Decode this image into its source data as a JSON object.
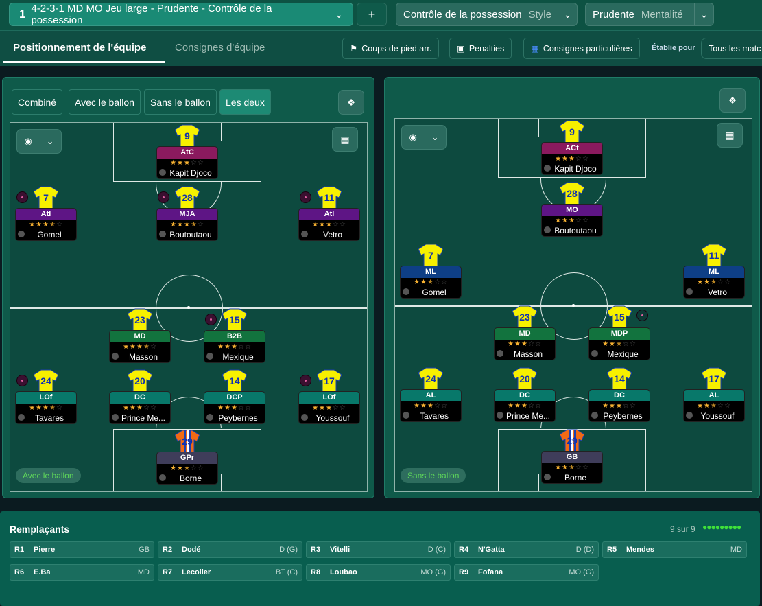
{
  "header": {
    "tactic_number": "1",
    "tactic_name": "4-2-3-1 MD MO Jeu large - Prudente - Contrôle de la possession",
    "add": "+",
    "style_value": "Contrôle de la possession",
    "style_label": "Style",
    "mentality_value": "Prudente",
    "mentality_label": "Mentalité"
  },
  "tabs": [
    {
      "label": "Positionnement de l'équipe",
      "active": true
    },
    {
      "label": "Consignes d'équipe",
      "active": false
    }
  ],
  "toolbar": {
    "set_pieces": "Coups de pied arr.",
    "penalties": "Penalties",
    "special": "Consignes particulières",
    "established_for": "Établie pour",
    "matches": "Tous les matc"
  },
  "view_tabs": [
    {
      "label": "Combiné"
    },
    {
      "label": "Avec le ballon"
    },
    {
      "label": "Sans le ballon"
    },
    {
      "label": "Les deux",
      "active": true
    }
  ],
  "colors": {
    "accent": "#1d8a74",
    "forward": "#8b1a5e",
    "att_mid": "#5e1585",
    "mid": "#12733e",
    "def": "#08786a",
    "wide": "#0e3f86",
    "gk": "#3f3d5a",
    "star": "#f5b031"
  },
  "left_pitch": {
    "mode": "Avec le ballon",
    "players": [
      {
        "num": "9",
        "role": "AtC",
        "color": "#8b1a5e",
        "stars": 3,
        "name": "Kapit Djoco"
      },
      {
        "num": "7",
        "role": "Atl",
        "color": "#5e1585",
        "stars": 3.5,
        "name": "Gomel",
        "indicator": true
      },
      {
        "num": "28",
        "role": "MJA",
        "color": "#5e1585",
        "stars": 3.5,
        "name": "Boutoutaou",
        "indicator": true
      },
      {
        "num": "11",
        "role": "Atl",
        "color": "#5e1585",
        "stars": 3,
        "name": "Vetro",
        "indicator": true
      },
      {
        "num": "23",
        "role": "MD",
        "color": "#12733e",
        "stars": 3.5,
        "name": "Masson"
      },
      {
        "num": "15",
        "role": "B2B",
        "color": "#12733e",
        "stars": 3,
        "name": "Mexique",
        "indicator": true
      },
      {
        "num": "24",
        "role": "LOf",
        "color": "#08786a",
        "stars": 3.5,
        "name": "Tavares",
        "indicator": true
      },
      {
        "num": "20",
        "role": "DC",
        "color": "#08786a",
        "stars": 3,
        "name": "Prince Me..."
      },
      {
        "num": "14",
        "role": "DCP",
        "color": "#08786a",
        "stars": 3,
        "name": "Peybernes"
      },
      {
        "num": "17",
        "role": "LOf",
        "color": "#08786a",
        "stars": 3,
        "name": "Youssouf",
        "indicator": true
      },
      {
        "num": "29",
        "role": "GPr",
        "color": "#3f3d5a",
        "stars": 2.5,
        "name": "Borne",
        "gk": true
      }
    ]
  },
  "right_pitch": {
    "mode": "Sans le ballon",
    "players": [
      {
        "num": "9",
        "role": "ACt",
        "color": "#8b1a5e",
        "stars": 3,
        "name": "Kapit Djoco"
      },
      {
        "num": "28",
        "role": "MO",
        "color": "#5e1585",
        "stars": 3,
        "name": "Boutoutaou"
      },
      {
        "num": "7",
        "role": "ML",
        "color": "#0e3f86",
        "stars": 2.5,
        "name": "Gomel"
      },
      {
        "num": "11",
        "role": "ML",
        "color": "#0e3f86",
        "stars": 2.5,
        "name": "Vetro"
      },
      {
        "num": "23",
        "role": "MD",
        "color": "#12733e",
        "stars": 3,
        "name": "Masson"
      },
      {
        "num": "15",
        "role": "MDP",
        "color": "#12733e",
        "stars": 2.5,
        "name": "Mexique",
        "indicator": true
      },
      {
        "num": "24",
        "role": "AL",
        "color": "#08786a",
        "stars": 3,
        "name": "Tavares"
      },
      {
        "num": "20",
        "role": "DC",
        "color": "#08786a",
        "stars": 3,
        "name": "Prince Me..."
      },
      {
        "num": "14",
        "role": "DC",
        "color": "#08786a",
        "stars": 3,
        "name": "Peybernes"
      },
      {
        "num": "17",
        "role": "AL",
        "color": "#08786a",
        "stars": 2.5,
        "name": "Youssouf"
      },
      {
        "num": "29",
        "role": "GB",
        "color": "#3f3d5a",
        "stars": 2.5,
        "name": "Borne",
        "gk": true
      }
    ]
  },
  "subs": {
    "title": "Remplaçants",
    "count": "9 sur 9",
    "items": [
      {
        "slot": "R1",
        "name": "Pierre",
        "pos": "GB"
      },
      {
        "slot": "R2",
        "name": "Dodé",
        "pos": "D (G)"
      },
      {
        "slot": "R3",
        "name": "Vitelli",
        "pos": "D (C)"
      },
      {
        "slot": "R4",
        "name": "N'Gatta",
        "pos": "D (D)"
      },
      {
        "slot": "R5",
        "name": "Mendes",
        "pos": "MD"
      },
      {
        "slot": "R6",
        "name": "E.Ba",
        "pos": "MD"
      },
      {
        "slot": "R7",
        "name": "Lecolier",
        "pos": "BT (C)"
      },
      {
        "slot": "R8",
        "name": "Loubao",
        "pos": "MO (G)"
      },
      {
        "slot": "R9",
        "name": "Fofana",
        "pos": "MO (G)"
      }
    ]
  }
}
